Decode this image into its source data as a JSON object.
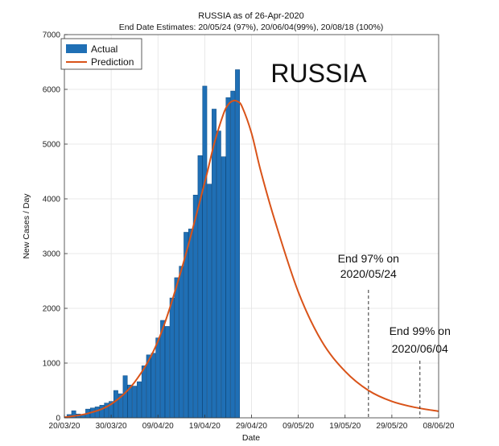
{
  "chart_data": {
    "type": "bar",
    "title": "RUSSIA as of 26-Apr-2020",
    "subtitle": "End Date Estimates: 20/05/24 (97%), 20/06/04(99%), 20/08/18 (100%)",
    "xlabel": "Date",
    "ylabel": "New Cases / Day",
    "overlay_label": "RUSSIA",
    "ylim": [
      0,
      7000
    ],
    "yticks": [
      0,
      1000,
      2000,
      3000,
      4000,
      5000,
      6000,
      7000
    ],
    "xlim": [
      "2020-03-20",
      "2020-06-08"
    ],
    "xticks": [
      "20/03/20",
      "30/03/20",
      "09/04/20",
      "19/04/20",
      "29/04/20",
      "09/05/20",
      "19/05/20",
      "29/05/20",
      "08/06/20"
    ],
    "grid": true,
    "legend_position": "top-left",
    "legend": [
      {
        "label": "Actual",
        "type": "bar",
        "color": "#1f6fb5"
      },
      {
        "label": "Prediction",
        "type": "line",
        "color": "#d95319"
      }
    ],
    "bar_series": {
      "name": "Actual",
      "color": "#1f6fb5",
      "dates": [
        "2020-03-21",
        "2020-03-22",
        "2020-03-23",
        "2020-03-24",
        "2020-03-25",
        "2020-03-26",
        "2020-03-27",
        "2020-03-28",
        "2020-03-29",
        "2020-03-30",
        "2020-03-31",
        "2020-04-01",
        "2020-04-02",
        "2020-04-03",
        "2020-04-04",
        "2020-04-05",
        "2020-04-06",
        "2020-04-07",
        "2020-04-08",
        "2020-04-09",
        "2020-04-10",
        "2020-04-11",
        "2020-04-12",
        "2020-04-13",
        "2020-04-14",
        "2020-04-15",
        "2020-04-16",
        "2020-04-17",
        "2020-04-18",
        "2020-04-19",
        "2020-04-20",
        "2020-04-21",
        "2020-04-22",
        "2020-04-23",
        "2020-04-24",
        "2020-04-25",
        "2020-04-26"
      ],
      "values": [
        60,
        130,
        70,
        60,
        160,
        180,
        200,
        230,
        270,
        300,
        500,
        440,
        770,
        600,
        580,
        660,
        950,
        1150,
        1180,
        1460,
        1780,
        1670,
        2190,
        2560,
        2770,
        3390,
        3450,
        4070,
        4790,
        6060,
        4270,
        5640,
        5240,
        4770,
        5850,
        5970,
        6360
      ]
    },
    "line_series": {
      "name": "Prediction",
      "color": "#d95319",
      "x": [
        "2020-03-20",
        "2020-03-25",
        "2020-03-30",
        "2020-04-04",
        "2020-04-09",
        "2020-04-14",
        "2020-04-19",
        "2020-04-21",
        "2020-04-23",
        "2020-04-24",
        "2020-04-25",
        "2020-04-26",
        "2020-04-27",
        "2020-04-29",
        "2020-05-01",
        "2020-05-04",
        "2020-05-09",
        "2020-05-14",
        "2020-05-19",
        "2020-05-24",
        "2020-05-29",
        "2020-06-03",
        "2020-06-08"
      ],
      "y": [
        10,
        80,
        250,
        650,
        1400,
        2700,
        4300,
        5000,
        5550,
        5720,
        5790,
        5780,
        5680,
        5200,
        4500,
        3600,
        2300,
        1400,
        850,
        500,
        300,
        190,
        120
      ]
    },
    "annotations": [
      {
        "lines": [
          "End 97% on",
          "2020/05/24"
        ],
        "date": "2020-05-24"
      },
      {
        "lines": [
          "End 99% on",
          "2020/06/04"
        ],
        "date": "2020-06-04"
      }
    ]
  }
}
